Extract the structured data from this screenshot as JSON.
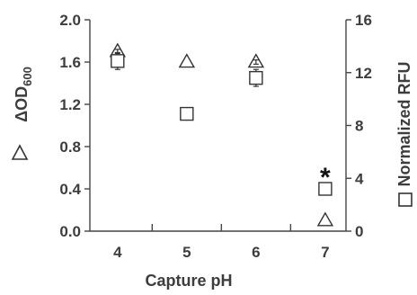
{
  "chart_data": {
    "type": "scatter",
    "xlabel": "Capture pH",
    "ylabel_left": {
      "main": "ΔOD",
      "subscript": "600"
    },
    "ylabel_right": "Normalized RFU",
    "x_ticks": [
      "4",
      "5",
      "6",
      "7"
    ],
    "y_left_ticks": [
      "0.0",
      "0.4",
      "0.8",
      "1.2",
      "1.6",
      "2.0"
    ],
    "y_left_lim": [
      0,
      2.0
    ],
    "y_right_ticks": [
      "0",
      "4",
      "8",
      "12",
      "16"
    ],
    "y_right_lim": [
      0,
      16
    ],
    "x": [
      4,
      5,
      6,
      7
    ],
    "series": [
      {
        "marker": "triangle",
        "axis": "left",
        "values": [
          1.7,
          1.6,
          1.6,
          0.1
        ],
        "error": [
          0.02,
          0,
          0.02,
          0
        ]
      },
      {
        "marker": "square",
        "axis": "left",
        "values": [
          1.61,
          1.11,
          1.45,
          0.4
        ],
        "error": [
          0.08,
          0,
          0.08,
          0
        ]
      }
    ],
    "annotations": [
      {
        "text": "*",
        "x": 7,
        "y": 0.56
      }
    ],
    "grid": false,
    "colors": {
      "marker_stroke": "#333333",
      "axis": "#444444",
      "text": "#3d3d3d"
    }
  }
}
